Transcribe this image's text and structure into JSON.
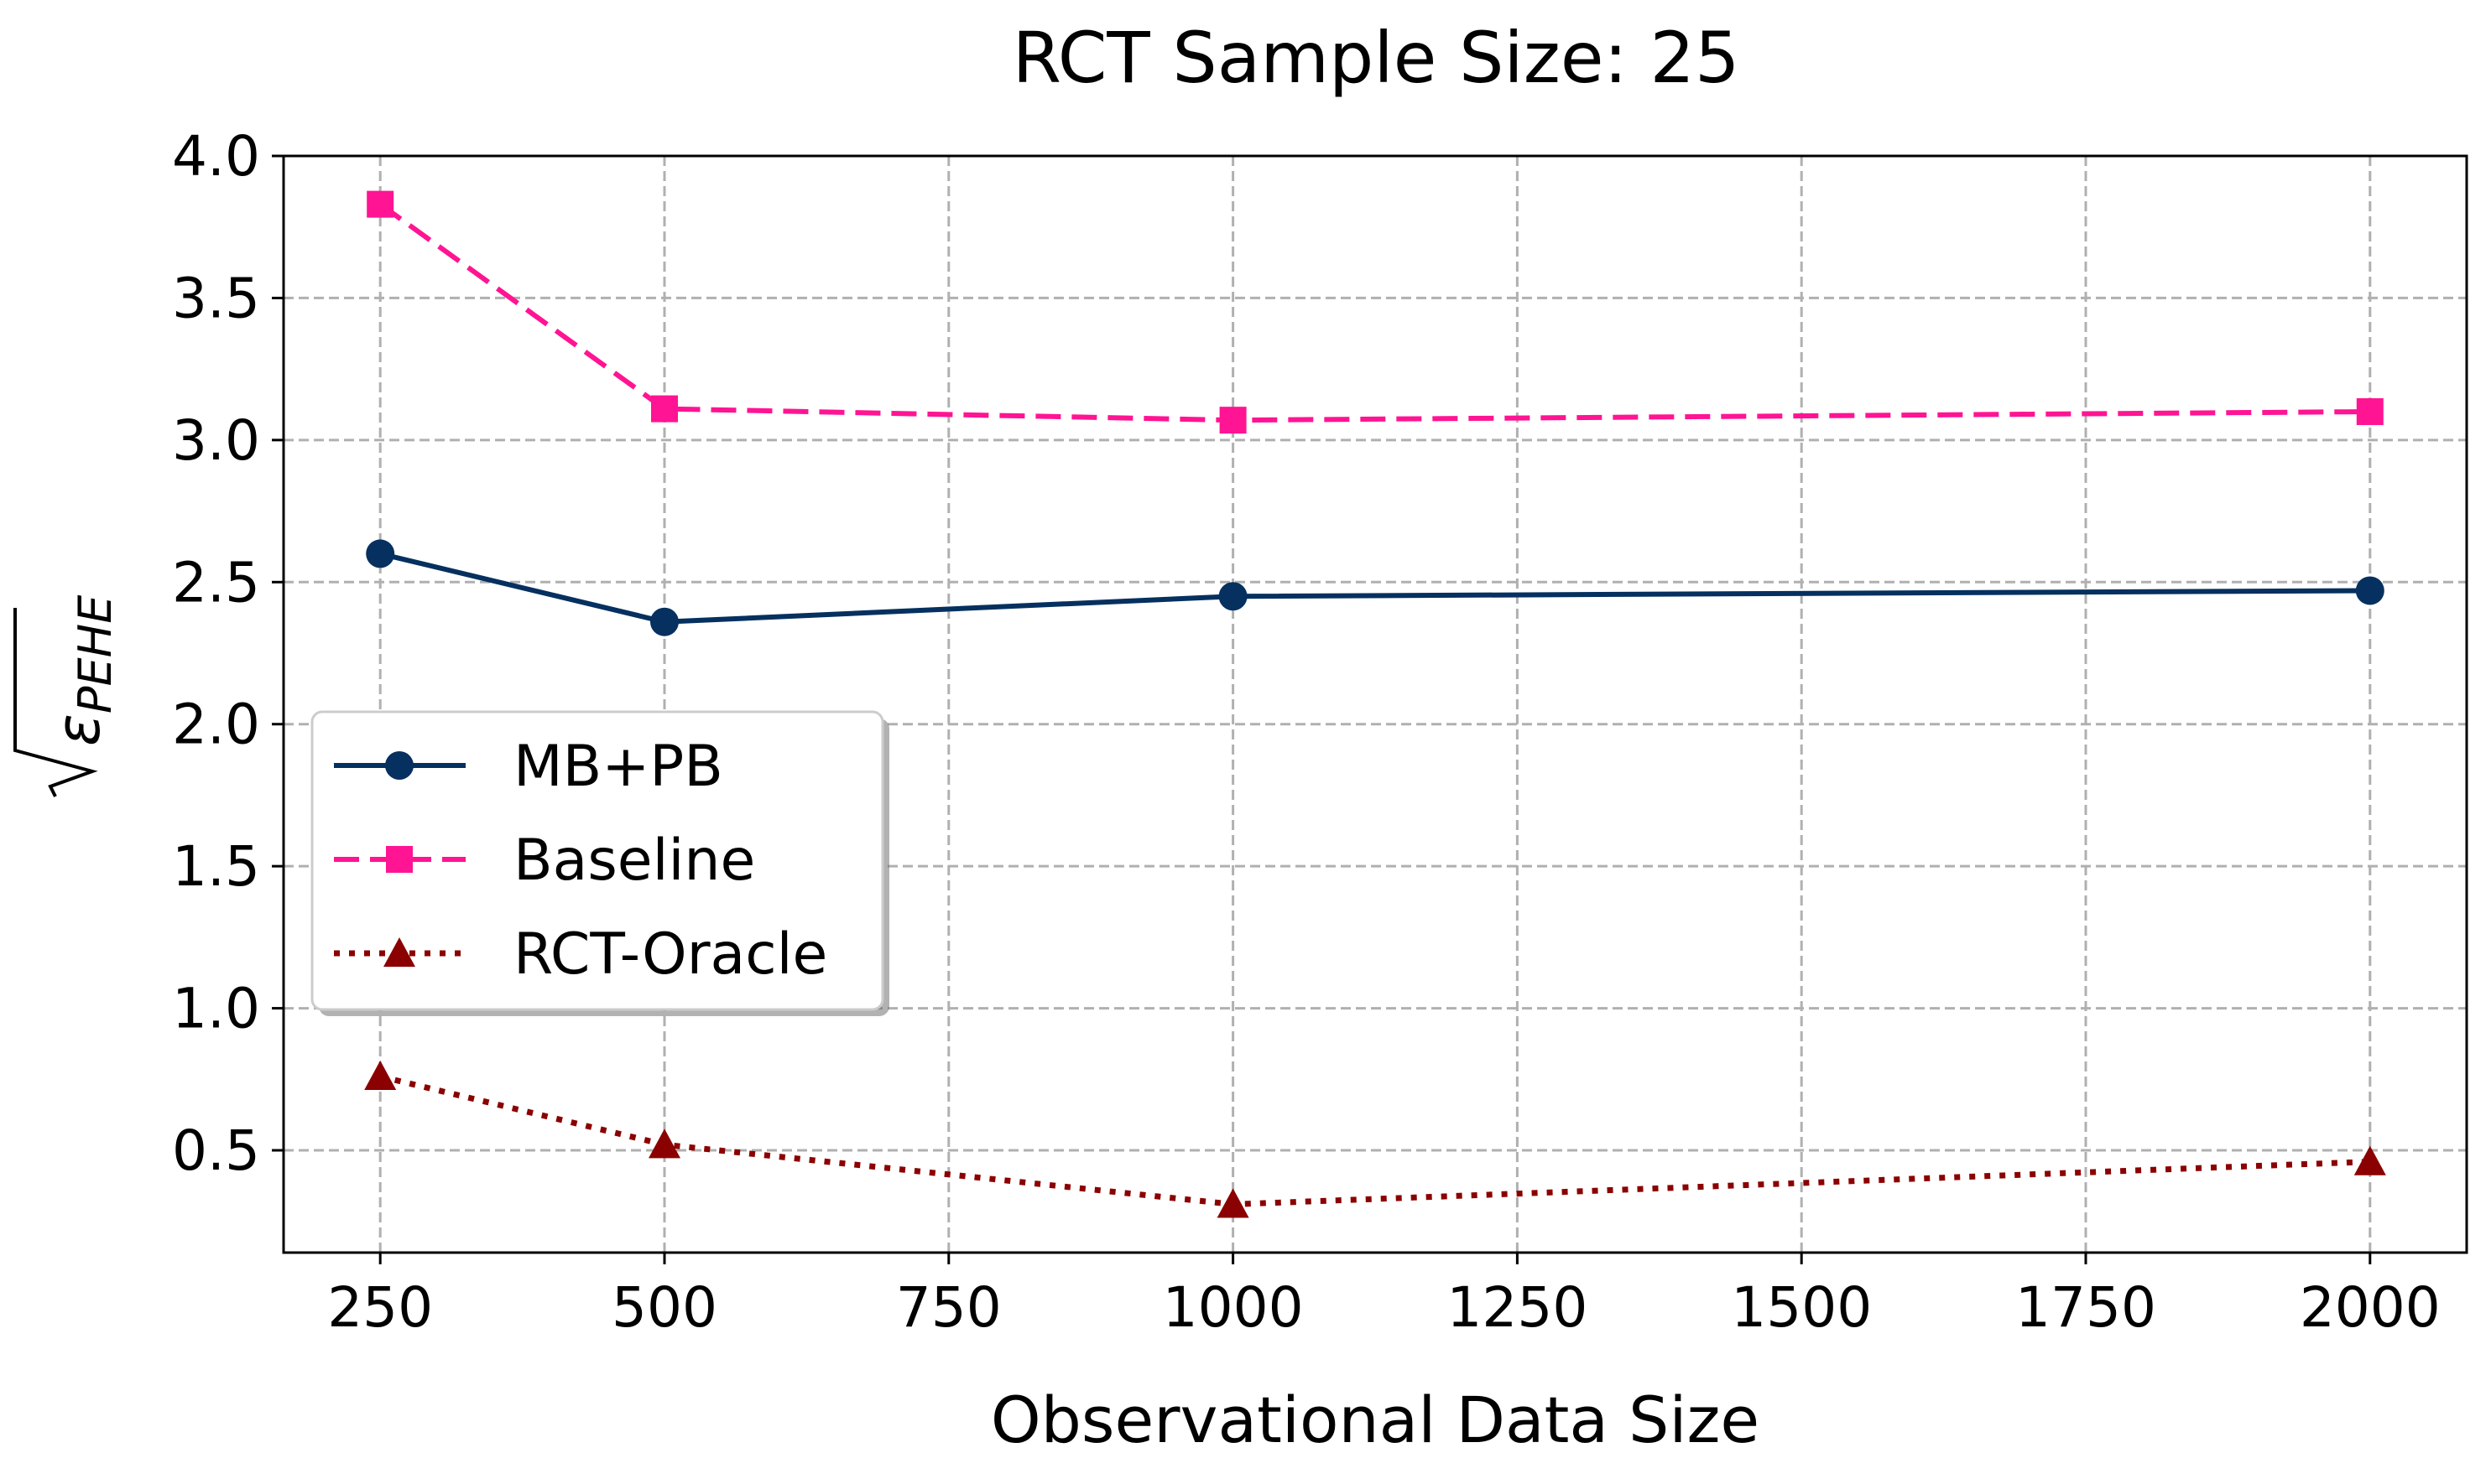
{
  "chart_data": {
    "type": "line",
    "title": "RCT Sample Size: 25",
    "xlabel": "Observational Data Size",
    "ylabel": "√ε_PEHE",
    "ylabel_symbol": "ε",
    "ylabel_subscript": "PEHE",
    "x": [
      250,
      500,
      1000,
      2000
    ],
    "xlim": [
      165,
      2085
    ],
    "ylim": [
      0.14,
      4.0
    ],
    "xticks": [
      250,
      500,
      750,
      1000,
      1250,
      1500,
      1750,
      2000
    ],
    "yticks": [
      0.5,
      1.0,
      1.5,
      2.0,
      2.5,
      3.0,
      3.5,
      4.0
    ],
    "xtick_labels": [
      "250",
      "500",
      "750",
      "1000",
      "1250",
      "1500",
      "1750",
      "2000"
    ],
    "ytick_labels": [
      "0.5",
      "1.0",
      "1.5",
      "2.0",
      "2.5",
      "3.0",
      "3.5",
      "4.0"
    ],
    "grid": true,
    "legend_position": "center-left",
    "series": [
      {
        "name": "MB+PB",
        "values": [
          2.6,
          2.36,
          2.45,
          2.47
        ],
        "color": "#05305f",
        "style": "solid",
        "marker": "circle"
      },
      {
        "name": "Baseline",
        "values": [
          3.83,
          3.11,
          3.07,
          3.1
        ],
        "color": "#ff1493",
        "style": "dashed",
        "marker": "square"
      },
      {
        "name": "RCT-Oracle",
        "values": [
          0.76,
          0.52,
          0.31,
          0.46
        ],
        "color": "#8b0000",
        "style": "dotted",
        "marker": "triangle"
      }
    ]
  }
}
